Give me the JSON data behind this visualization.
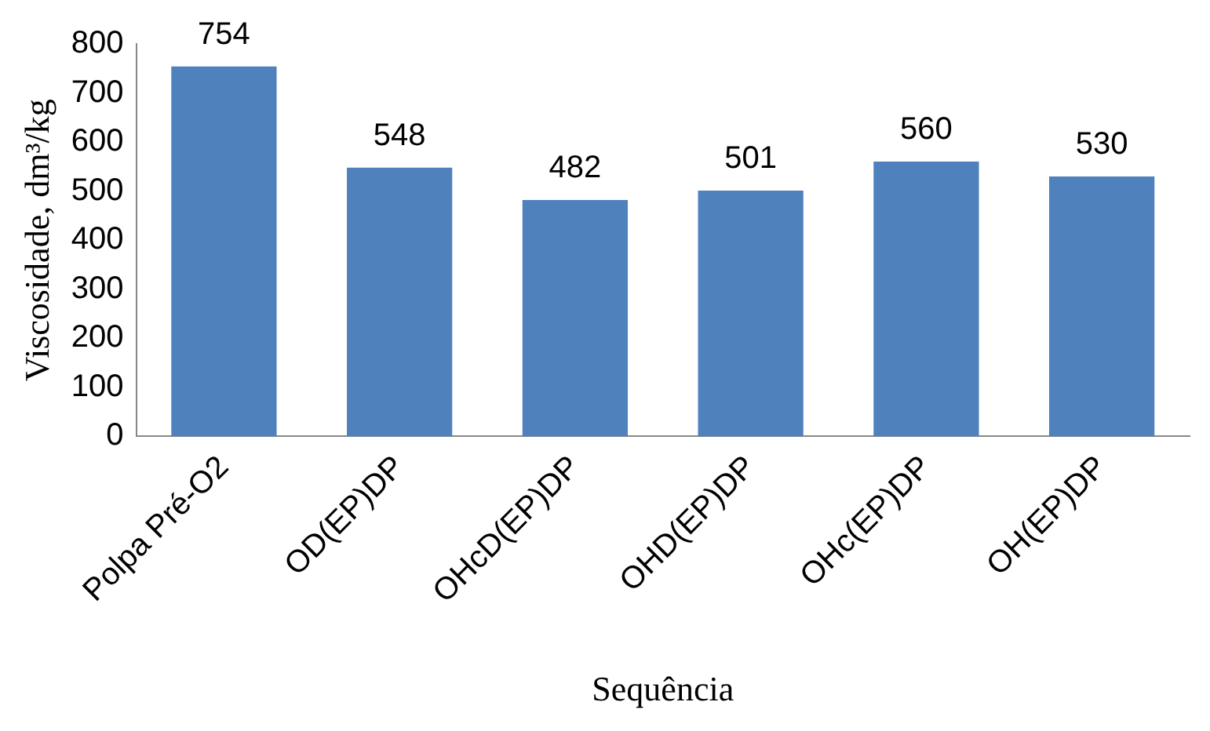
{
  "chart_data": {
    "type": "bar",
    "xlabel": "Sequência",
    "ylabel": "Viscosidade, dm³/kg",
    "categories": [
      "Polpa Pré-O2",
      "OD(EP)DP",
      "OHcD(EP)DP",
      "OHD(EP)DP",
      "OHc(EP)DP",
      "OH(EP)DP"
    ],
    "values": [
      754,
      548,
      482,
      501,
      560,
      530
    ],
    "color": "#4f81bd",
    "ylim": [
      0,
      800
    ],
    "yticks": [
      0,
      100,
      200,
      300,
      400,
      500,
      600,
      700,
      800
    ],
    "grid": false,
    "legend": false,
    "data_labels": true
  }
}
